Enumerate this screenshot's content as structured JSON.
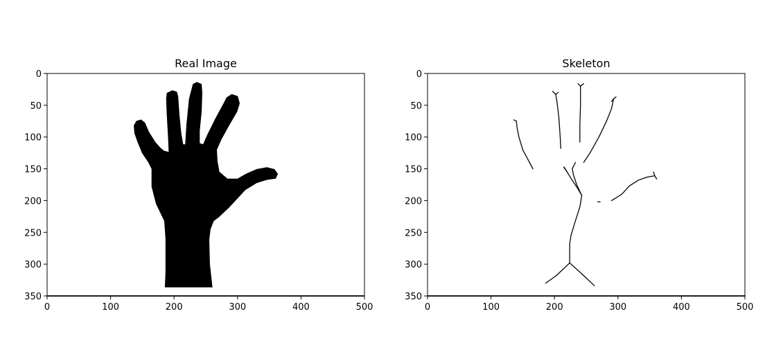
{
  "chart_data": [
    {
      "type": "image",
      "title": "Real Image",
      "xlim": [
        0,
        500
      ],
      "ylim": [
        350,
        0
      ],
      "x_ticks": [
        "0",
        "100",
        "200",
        "300",
        "400",
        "500"
      ],
      "y_ticks": [
        "0",
        "50",
        "100",
        "150",
        "200",
        "250",
        "300",
        "350"
      ],
      "content": "filled-hand-silhouette"
    },
    {
      "type": "image",
      "title": "Skeleton",
      "xlim": [
        0,
        500
      ],
      "ylim": [
        350,
        0
      ],
      "x_ticks": [
        "0",
        "100",
        "200",
        "300",
        "400",
        "500"
      ],
      "y_ticks": [
        "0",
        "50",
        "100",
        "150",
        "200",
        "250",
        "300",
        "350"
      ],
      "content": "skeleton-lines"
    }
  ]
}
